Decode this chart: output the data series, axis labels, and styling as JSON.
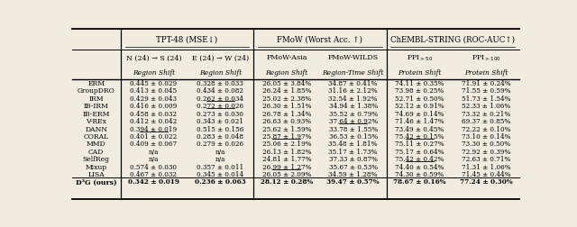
{
  "methods": [
    "ERM",
    "GroupDRO",
    "IRM",
    "IB-IRM",
    "IB-ERM",
    "V-REx",
    "DANN",
    "CORAL",
    "MMD",
    "CAD",
    "SelfReg",
    "Mixup",
    "LISA",
    "D³G (ours)"
  ],
  "col0": [
    "0.445 ± 0.029",
    "0.413 ± 0.045",
    "0.429 ± 0.043",
    "0.416 ± 0.009",
    "0.458 ± 0.032",
    "0.412 ± 0.042",
    "0.394 ± 0.019",
    "0.401 ± 0.022",
    "0.409 ± 0.067",
    "n/a",
    "n/a",
    "0.574 ± 0.030",
    "0.467 ± 0.032",
    "0.342 ± 0.019"
  ],
  "col1": [
    "0.328 ± 0.033",
    "0.434 ± 0.082",
    "0.262 ± 0.034",
    "0.272 ± 0.026",
    "0.273 ± 0.030",
    "0.343 ± 0.021",
    "0.515 ± 0.156",
    "0.283 ± 0.048",
    "0.279 ± 0.026",
    "n/a",
    "n/a",
    "0.357 ± 0.011",
    "0.345 ± 0.014",
    "0.236 ± 0.063"
  ],
  "col2": [
    "26.05 ± 3.84%",
    "26.24 ± 1.85%",
    "25.02 ± 2.38%",
    "26.30 ± 1.51%",
    "26.78 ± 1.34%",
    "26.63 ± 0.93%",
    "25.62 ± 1.59%",
    "25.87 ± 1.97%",
    "25.06 ± 2.19%",
    "26.13 ± 1.82%",
    "24.81 ± 1.77%",
    "26.99 ± 1.27%",
    "26.05 ± 2.09%",
    "28.12 ± 0.28%"
  ],
  "col3": [
    "34.87 ± 0.41%",
    "31.16 ± 2.12%",
    "32.54 ± 1.92%",
    "34.94 ± 1.38%",
    "35.52 ± 0.79%",
    "37.64 ± 0.92%",
    "33.78 ± 1.55%",
    "36.53 ± 0.15%",
    "35.48 ± 1.81%",
    "35.17 ± 1.73%",
    "37.33 ± 0.87%",
    "35.67 ± 0.53%",
    "34.59 ± 1.28%",
    "39.47 ± 0.57%"
  ],
  "col4": [
    "74.11 ± 0.35%",
    "73.98 ± 0.25%",
    "52.71 ± 0.50%",
    "52.12 ± 0.91%",
    "74.69 ± 0.14%",
    "71.46 ± 1.47%",
    "73.49 ± 0.45%",
    "75.42 ± 0.15%",
    "75.11 ± 0.27%",
    "75.17 ± 0.64%",
    "75.42 ± 0.42%",
    "74.40 ± 0.54%",
    "74.30 ± 0.59%",
    "78.67 ± 0.16%"
  ],
  "col5": [
    "71.91 ± 0.24%",
    "71.55 ± 0.59%",
    "51.73 ± 1.54%",
    "52.33 ± 1.06%",
    "73.32 ± 0.21%",
    "69.37 ± 0.85%",
    "72.22 ± 0.10%",
    "73.10 ± 0.14%",
    "73.30 ± 0.50%",
    "72.92 ± 0.39%",
    "72.63 ± 0.71%",
    "71.31 ± 1.06%",
    "71.45 ± 0.44%",
    "77.24 ± 0.30%"
  ],
  "underline_cells": [
    [
      2,
      1
    ],
    [
      3,
      1
    ],
    [
      5,
      3
    ],
    [
      6,
      0
    ],
    [
      7,
      2
    ],
    [
      7,
      4
    ],
    [
      10,
      4
    ],
    [
      11,
      2
    ]
  ],
  "group_headers": [
    "TPT-48 (MSE↓)",
    "FMoW (Worst Acc. ↑)",
    "ChEMBL-STRING (ROC-AUC↑)"
  ],
  "sub_headers": [
    "N (24) → S (24)",
    "E (24) → W (24)",
    "FMoW-Asia",
    "FMoW-WILDS",
    "PPI_{>50}",
    "PPI_{>100}"
  ],
  "shift_labels": [
    "Region Shift",
    "Region Shift",
    "Region Shift",
    "Region-Time Shift",
    "Protein Shift",
    "Protein Shift"
  ],
  "bg_color": "#f0ece0",
  "figsize": [
    6.4,
    2.53
  ],
  "dpi": 100
}
